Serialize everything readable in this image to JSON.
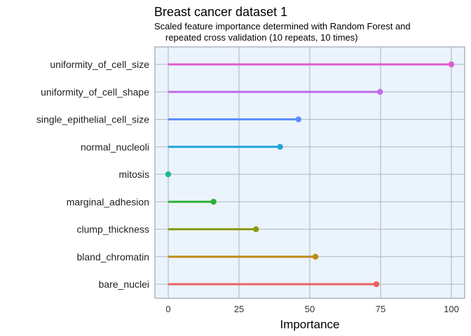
{
  "chart_data": {
    "type": "lollipop",
    "title": "Breast cancer dataset 1",
    "subtitle_lines": [
      "Scaled feature importance determined with Random Forest and",
      "repeated cross validation (10 repeats, 10 times)"
    ],
    "xlabel": "Importance",
    "ylabel": "",
    "xlim": [
      0,
      100
    ],
    "xticks": [
      "0",
      "25",
      "50",
      "75",
      "100"
    ],
    "grid": true,
    "categories": [
      "uniformity_of_cell_size",
      "uniformity_of_cell_shape",
      "single_epithelial_cell_size",
      "normal_nucleoli",
      "mitosis",
      "marginal_adhesion",
      "clump_thickness",
      "bland_chromatin",
      "bare_nuclei"
    ],
    "values": [
      100,
      74.8,
      46,
      39.5,
      0,
      16,
      31,
      52,
      73.5
    ],
    "colors": [
      "#E35BD0",
      "#C06CEB",
      "#5B8FF7",
      "#1FA7D9",
      "#1EB89A",
      "#2DB034",
      "#8A9A12",
      "#C08A16",
      "#EE6060"
    ],
    "colors_meta": {
      "panel_background": "#EBF4FD",
      "grid": "#AEB7BF",
      "border": "#8C96A0"
    }
  }
}
